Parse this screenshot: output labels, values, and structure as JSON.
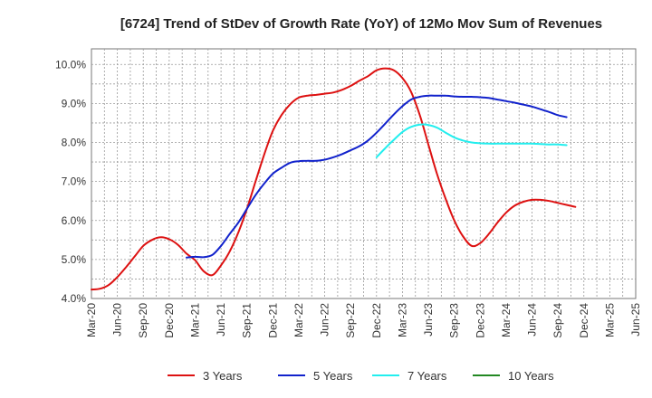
{
  "chart_data": {
    "type": "line",
    "title": "[6724]  Trend of StDev of Growth Rate (YoY) of 12Mo Mov Sum of Revenues",
    "xlabel": "",
    "ylabel": "",
    "ylim": [
      4.0,
      10.4
    ],
    "yticks": [
      "4.0%",
      "5.0%",
      "6.0%",
      "7.0%",
      "8.0%",
      "9.0%",
      "10.0%"
    ],
    "ytick_values": [
      4.0,
      5.0,
      6.0,
      7.0,
      8.0,
      9.0,
      10.0
    ],
    "x_categories": [
      "Mar-20",
      "Jun-20",
      "Sep-20",
      "Dec-20",
      "Mar-21",
      "Jun-21",
      "Sep-21",
      "Dec-21",
      "Mar-22",
      "Jun-22",
      "Sep-22",
      "Dec-22",
      "Mar-23",
      "Jun-23",
      "Sep-23",
      "Dec-23",
      "Mar-24",
      "Jun-24",
      "Sep-24",
      "Dec-24",
      "Mar-25",
      "Jun-25"
    ],
    "grid": true,
    "legend_position": "bottom",
    "series": [
      {
        "name": "3 Years",
        "color": "#dd1111",
        "points": [
          [
            0,
            4.23
          ],
          [
            0.33,
            4.25
          ],
          [
            0.67,
            4.35
          ],
          [
            1,
            4.55
          ],
          [
            1.33,
            4.8
          ],
          [
            1.67,
            5.08
          ],
          [
            2,
            5.35
          ],
          [
            2.33,
            5.5
          ],
          [
            2.67,
            5.57
          ],
          [
            3,
            5.52
          ],
          [
            3.33,
            5.38
          ],
          [
            3.67,
            5.15
          ],
          [
            4,
            4.98
          ],
          [
            4.33,
            4.7
          ],
          [
            4.67,
            4.6
          ],
          [
            5,
            4.85
          ],
          [
            5.33,
            5.2
          ],
          [
            5.67,
            5.7
          ],
          [
            6,
            6.3
          ],
          [
            6.33,
            7.0
          ],
          [
            6.67,
            7.7
          ],
          [
            7,
            8.3
          ],
          [
            7.33,
            8.7
          ],
          [
            7.67,
            8.98
          ],
          [
            8,
            9.15
          ],
          [
            8.33,
            9.2
          ],
          [
            8.67,
            9.22
          ],
          [
            9,
            9.25
          ],
          [
            9.33,
            9.28
          ],
          [
            9.67,
            9.35
          ],
          [
            10,
            9.45
          ],
          [
            10.33,
            9.58
          ],
          [
            10.67,
            9.7
          ],
          [
            11,
            9.85
          ],
          [
            11.33,
            9.9
          ],
          [
            11.67,
            9.85
          ],
          [
            12,
            9.65
          ],
          [
            12.33,
            9.3
          ],
          [
            12.67,
            8.7
          ],
          [
            13,
            7.95
          ],
          [
            13.33,
            7.2
          ],
          [
            13.67,
            6.55
          ],
          [
            14,
            6.0
          ],
          [
            14.33,
            5.6
          ],
          [
            14.67,
            5.35
          ],
          [
            15,
            5.42
          ],
          [
            15.33,
            5.65
          ],
          [
            15.67,
            5.95
          ],
          [
            16,
            6.2
          ],
          [
            16.33,
            6.38
          ],
          [
            16.67,
            6.48
          ],
          [
            17,
            6.53
          ],
          [
            17.33,
            6.53
          ],
          [
            17.67,
            6.5
          ],
          [
            18,
            6.45
          ],
          [
            18.33,
            6.4
          ],
          [
            18.67,
            6.35
          ]
        ]
      },
      {
        "name": "5 Years",
        "color": "#1122cc",
        "points": [
          [
            3.67,
            5.05
          ],
          [
            4,
            5.07
          ],
          [
            4.33,
            5.06
          ],
          [
            4.67,
            5.12
          ],
          [
            5,
            5.35
          ],
          [
            5.33,
            5.65
          ],
          [
            5.67,
            5.95
          ],
          [
            6,
            6.3
          ],
          [
            6.33,
            6.65
          ],
          [
            6.67,
            6.95
          ],
          [
            7,
            7.2
          ],
          [
            7.33,
            7.35
          ],
          [
            7.67,
            7.48
          ],
          [
            8,
            7.52
          ],
          [
            8.33,
            7.53
          ],
          [
            8.67,
            7.53
          ],
          [
            9,
            7.56
          ],
          [
            9.33,
            7.62
          ],
          [
            9.67,
            7.7
          ],
          [
            10,
            7.8
          ],
          [
            10.33,
            7.9
          ],
          [
            10.67,
            8.05
          ],
          [
            11,
            8.25
          ],
          [
            11.33,
            8.48
          ],
          [
            11.67,
            8.72
          ],
          [
            12,
            8.93
          ],
          [
            12.33,
            9.1
          ],
          [
            12.67,
            9.17
          ],
          [
            13,
            9.2
          ],
          [
            13.33,
            9.2
          ],
          [
            13.67,
            9.2
          ],
          [
            14,
            9.18
          ],
          [
            14.33,
            9.17
          ],
          [
            14.67,
            9.17
          ],
          [
            15,
            9.16
          ],
          [
            15.33,
            9.14
          ],
          [
            15.67,
            9.1
          ],
          [
            16,
            9.06
          ],
          [
            16.33,
            9.02
          ],
          [
            16.67,
            8.97
          ],
          [
            17,
            8.92
          ],
          [
            17.33,
            8.85
          ],
          [
            17.67,
            8.78
          ],
          [
            18,
            8.7
          ],
          [
            18.33,
            8.65
          ]
        ]
      },
      {
        "name": "7 Years",
        "color": "#22eeee",
        "points": [
          [
            11,
            7.62
          ],
          [
            11.33,
            7.85
          ],
          [
            11.67,
            8.07
          ],
          [
            12,
            8.27
          ],
          [
            12.33,
            8.4
          ],
          [
            12.67,
            8.46
          ],
          [
            13,
            8.45
          ],
          [
            13.33,
            8.38
          ],
          [
            13.67,
            8.25
          ],
          [
            14,
            8.13
          ],
          [
            14.33,
            8.05
          ],
          [
            14.67,
            8.0
          ],
          [
            15,
            7.98
          ],
          [
            15.33,
            7.97
          ],
          [
            15.67,
            7.97
          ],
          [
            16,
            7.97
          ],
          [
            16.33,
            7.97
          ],
          [
            16.67,
            7.97
          ],
          [
            17,
            7.97
          ],
          [
            17.33,
            7.96
          ],
          [
            17.67,
            7.95
          ],
          [
            18,
            7.95
          ],
          [
            18.33,
            7.93
          ]
        ]
      },
      {
        "name": "10 Years",
        "color": "#228822",
        "points": []
      }
    ]
  }
}
